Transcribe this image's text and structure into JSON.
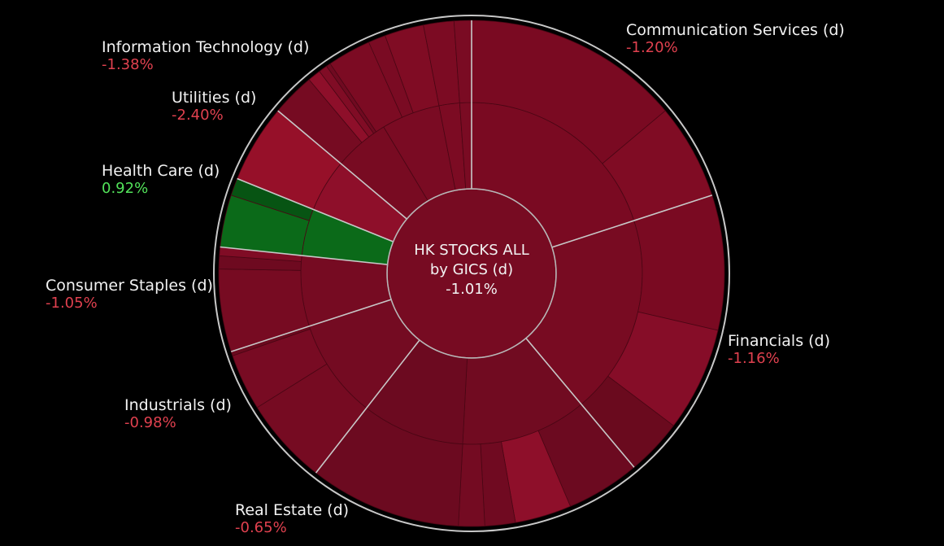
{
  "chart_data": {
    "type": "sunburst",
    "center": {
      "line1": "HK STOCKS ALL",
      "line2": "by GICS (d)",
      "value": "-1.01%"
    },
    "colors": {
      "negative": "#e0414f",
      "positive": "#52e35a",
      "label": "#f2f2f2",
      "background": "#000000"
    },
    "sectors": [
      {
        "name": "Communication Services (d)",
        "change": "-1.20%",
        "start": 0,
        "end": 72,
        "color": "#7a0a22",
        "mid": [
          {
            "start": 0,
            "end": 72,
            "color": "#7a0a22"
          }
        ],
        "outer": [
          {
            "start": 0,
            "end": 50,
            "color": "#7a0a22"
          },
          {
            "start": 50,
            "end": 72,
            "color": "#800c24"
          }
        ]
      },
      {
        "name": "Financials (d)",
        "change": "-1.16%",
        "start": 72,
        "end": 140,
        "color": "#780b22",
        "mid": [
          {
            "start": 72,
            "end": 140,
            "color": "#780b22"
          }
        ],
        "outer": [
          {
            "start": 72,
            "end": 103,
            "color": "#7a0a22"
          },
          {
            "start": 103,
            "end": 127,
            "color": "#860d28"
          },
          {
            "start": 127,
            "end": 140,
            "color": "#6a0a1e"
          }
        ]
      },
      {
        "name": "Real Estate (d)",
        "change": "-0.65%",
        "start": 140,
        "end": 218,
        "color": "#700a21",
        "mid": [
          {
            "start": 140,
            "end": 183,
            "color": "#710b21"
          },
          {
            "start": 183,
            "end": 218,
            "color": "#6c0a20"
          }
        ],
        "outer": [
          {
            "start": 140,
            "end": 157,
            "color": "#6c0a20"
          },
          {
            "start": 157,
            "end": 170,
            "color": "#8e0f2a"
          },
          {
            "start": 170,
            "end": 177,
            "color": "#700a21"
          },
          {
            "start": 177,
            "end": 183,
            "color": "#740b22"
          },
          {
            "start": 183,
            "end": 218,
            "color": "#6c0a20"
          }
        ]
      },
      {
        "name": "Industrials (d)",
        "change": "-0.98%",
        "start": 218,
        "end": 252,
        "color": "#740b22",
        "mid": [
          {
            "start": 218,
            "end": 252,
            "color": "#740b22"
          }
        ],
        "outer": [
          {
            "start": 218,
            "end": 238,
            "color": "#760b22"
          },
          {
            "start": 238,
            "end": 251,
            "color": "#780b23"
          },
          {
            "start": 251,
            "end": 252,
            "color": "#6a0a1e"
          }
        ]
      },
      {
        "name": "Consumer Staples (d)",
        "change": "-1.05%",
        "start": 252,
        "end": 276,
        "color": "#760b22",
        "mid": [
          {
            "start": 252,
            "end": 276,
            "color": "#760b22"
          }
        ],
        "outer": [
          {
            "start": 252,
            "end": 271,
            "color": "#770b22"
          },
          {
            "start": 271,
            "end": 274,
            "color": "#6e0a20"
          },
          {
            "start": 274,
            "end": 276,
            "color": "#800c25"
          }
        ]
      },
      {
        "name": "Health Care (d)",
        "change": "0.92%",
        "start": 276,
        "end": 292,
        "color": "#0b6a19",
        "mid": [
          {
            "start": 276,
            "end": 292,
            "color": "#0b6a19"
          }
        ],
        "outer": [
          {
            "start": 276,
            "end": 288,
            "color": "#0b6a19"
          },
          {
            "start": 288,
            "end": 292,
            "color": "#075413"
          }
        ]
      },
      {
        "name": "Utilities (d)",
        "change": "-2.40%",
        "start": 292,
        "end": 310,
        "color": "#8e0f2a",
        "mid": [
          {
            "start": 292,
            "end": 310,
            "color": "#8e0f2a"
          }
        ],
        "outer": [
          {
            "start": 292,
            "end": 310,
            "color": "#961029"
          }
        ]
      },
      {
        "name": "Information Technology (d)",
        "change": "-1.38%",
        "start": 310,
        "end": 360,
        "color": "#7a0b23",
        "mid": [
          {
            "start": 310,
            "end": 329,
            "color": "#780b22"
          },
          {
            "start": 329,
            "end": 349,
            "color": "#7a0b23"
          },
          {
            "start": 349,
            "end": 356,
            "color": "#7c0b23"
          },
          {
            "start": 356,
            "end": 360,
            "color": "#7a0b23"
          }
        ],
        "outer": [
          {
            "start": 310,
            "end": 320,
            "color": "#760b22"
          },
          {
            "start": 320,
            "end": 323,
            "color": "#8e0f2a"
          },
          {
            "start": 323,
            "end": 325,
            "color": "#800c25"
          },
          {
            "start": 325,
            "end": 326,
            "color": "#700a21"
          },
          {
            "start": 326,
            "end": 336,
            "color": "#7c0b23"
          },
          {
            "start": 336,
            "end": 340,
            "color": "#7a0b23"
          },
          {
            "start": 340,
            "end": 349,
            "color": "#800c24"
          },
          {
            "start": 349,
            "end": 356,
            "color": "#7c0b23"
          },
          {
            "start": 356,
            "end": 360,
            "color": "#7a0b23"
          }
        ]
      }
    ]
  }
}
